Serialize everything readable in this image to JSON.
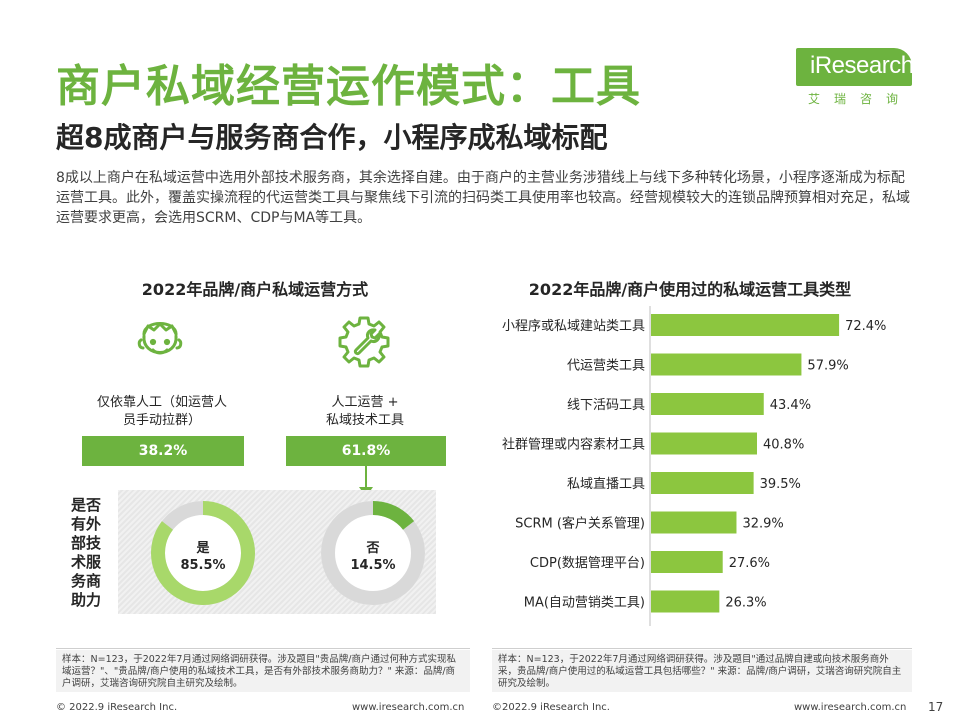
{
  "header": {
    "title": "商户私域经营运作模式：工具",
    "subtitle": "超8成商户与服务商合作，小程序成私域标配",
    "logo_text": "iResearch",
    "logo_sub": "艾瑞咨询"
  },
  "description": "8成以上商户在私域运营中选用外部技术服务商，其余选择自建。由于商户的主营业务涉猎线上与线下多种转化场景，小程序逐渐成为标配运营工具。此外，覆盖实操流程的代运营类工具与聚焦线下引流的扫码类工具使用率也较高。经营规模较大的连锁品牌预算相对充足，私域运营要求更高，会选用SCRM、CDP与MA等工具。",
  "left_panel": {
    "title": "2022年品牌/商户私域运营方式",
    "option_manual": {
      "label_line1": "仅依靠人工（如运营人",
      "label_line2": "员手动拉群）",
      "percent": "38.2%",
      "icon": "person-face-icon"
    },
    "option_tools": {
      "label_line1": "人工运营 +",
      "label_line2": "私域技术工具",
      "percent": "61.8%",
      "icon": "gear-wrench-icon"
    },
    "assist_question": "是否有外部技术服务商助力",
    "assist_question_lines": [
      "是否",
      "有外",
      "部技",
      "术服",
      "务商",
      "助力"
    ],
    "donut_yes": {
      "label": "是",
      "value": "85.5%"
    },
    "donut_no": {
      "label": "否",
      "value": "14.5%"
    },
    "colors": {
      "accent": "#6db33f",
      "accent_light": "#a8d86a",
      "track": "#d9d9d9"
    }
  },
  "chart_data": {
    "type": "bar",
    "title": "2022年品牌/商户使用过的私域运营工具类型",
    "categories": [
      "小程序或私域建站类工具",
      "代运营类工具",
      "线下活码工具",
      "社群管理或内容素材工具",
      "私域直播工具",
      "SCRM (客户关系管理)",
      "CDP(数据管理平台)",
      "MA(自动营销类工具)"
    ],
    "values": [
      72.4,
      57.9,
      43.4,
      40.8,
      39.5,
      32.9,
      27.6,
      26.3
    ],
    "value_labels": [
      "72.4%",
      "57.9%",
      "43.4%",
      "40.8%",
      "39.5%",
      "32.9%",
      "27.6%",
      "26.3%"
    ],
    "orientation": "horizontal",
    "xlim": [
      0,
      100
    ],
    "bar_color": "#8cc63f"
  },
  "sources": {
    "left": "样本：N=123，于2022年7月通过网络调研获得。涉及题目\"贵品牌/商户通过何种方式实现私域运营？\"、\"贵品牌/商户使用的私域技术工具，是否有外部技术服务商助力？\" 来源：品牌/商户调研，艾瑞咨询研究院自主研究及绘制。",
    "right": "样本：N=123，于2022年7月通过网络调研获得。涉及题目\"通过品牌自建或向技术服务商外采，贵品牌/商户使用过的私域运营工具包括哪些？\" 来源：品牌/商户调研，艾瑞咨询研究院自主研究及绘制。"
  },
  "footer": {
    "left_copyright": "© 2022.9 iResearch Inc.",
    "left_url": "www.iresearch.com.cn",
    "right_copyright": "©2022.9 iResearch Inc.",
    "right_url": "www.iresearch.com.cn",
    "page_number": "17"
  }
}
